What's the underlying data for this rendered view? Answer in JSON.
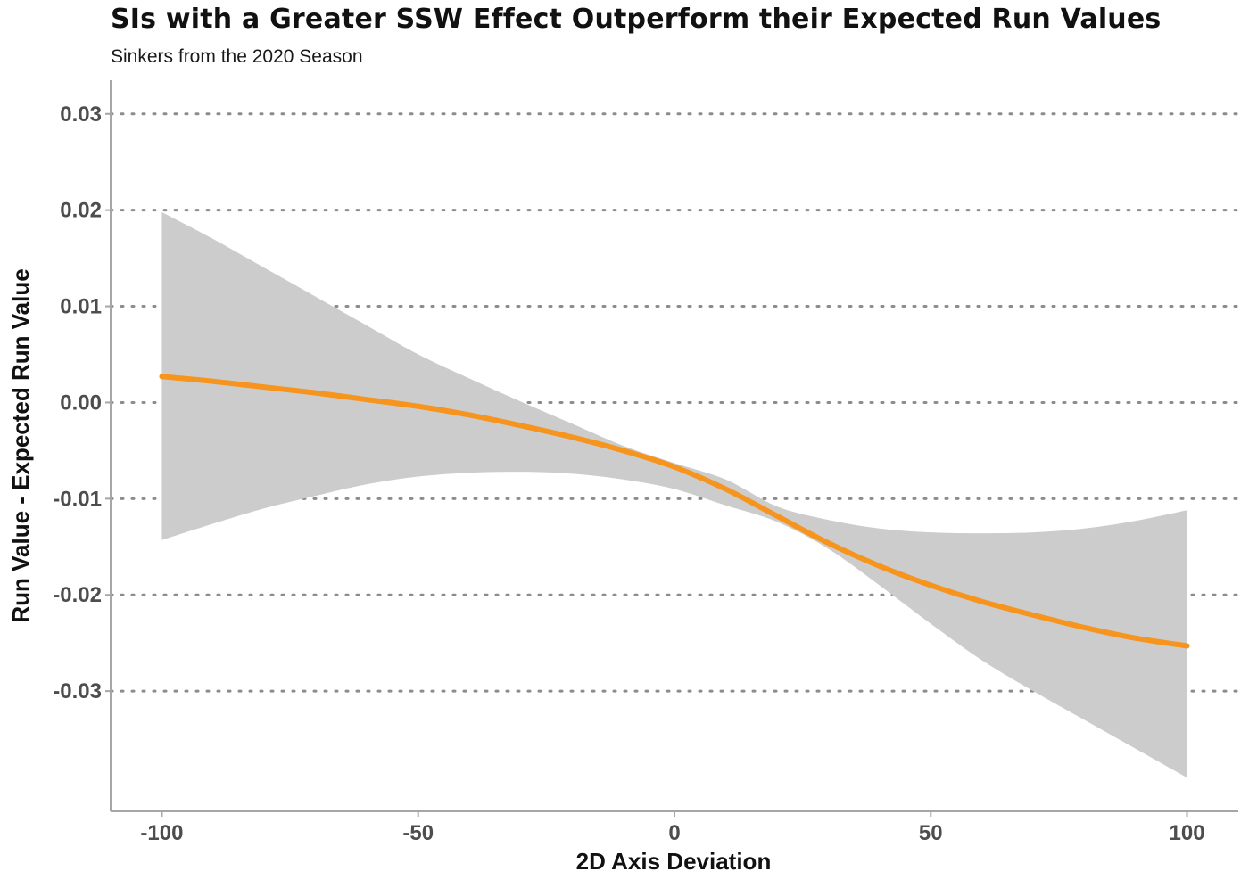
{
  "chart_data": {
    "type": "line",
    "title": "SIs with a Greater SSW Effect Outperform their Expected Run Values",
    "subtitle": "Sinkers from the 2020 Season",
    "xlabel": "2D Axis Deviation",
    "ylabel": "Run Value - Expected Run Value",
    "xlim": [
      -110,
      110
    ],
    "ylim": [
      -0.0425,
      0.0335
    ],
    "x_ticks": [
      -100,
      -50,
      0,
      50,
      100
    ],
    "x_tick_labels": [
      "-100",
      "-50",
      "0",
      "50",
      "100"
    ],
    "y_ticks": [
      0.03,
      0.02,
      0.01,
      0.0,
      -0.01,
      -0.02,
      -0.03
    ],
    "y_tick_labels": [
      "0.03",
      "0.02",
      "0.01",
      "0.00",
      "-0.01",
      "-0.02",
      "-0.03"
    ],
    "grid": {
      "horizontal": true,
      "vertical": false,
      "style": "dotted"
    },
    "line_color": "#f7941d",
    "band_color": "#cccccc",
    "series": [
      {
        "x": [
          -100,
          -90,
          -80,
          -70,
          -60,
          -50,
          -40,
          -30,
          -20,
          -10,
          0,
          10,
          20,
          30,
          40,
          50,
          60,
          70,
          80,
          90,
          100
        ],
        "values": [
          0.0027,
          0.0022,
          0.0016,
          0.001,
          0.0003,
          -0.0004,
          -0.0013,
          -0.0024,
          -0.0036,
          -0.005,
          -0.0067,
          -0.009,
          -0.0118,
          -0.0146,
          -0.017,
          -0.019,
          -0.0207,
          -0.0221,
          -0.0234,
          -0.0245,
          -0.0253
        ],
        "lower": [
          -0.0143,
          -0.0126,
          -0.011,
          -0.0097,
          -0.0085,
          -0.0077,
          -0.0073,
          -0.0072,
          -0.0074,
          -0.008,
          -0.009,
          -0.0107,
          -0.0124,
          -0.0152,
          -0.019,
          -0.023,
          -0.0268,
          -0.03,
          -0.033,
          -0.036,
          -0.039
        ],
        "upper": [
          0.0198,
          0.017,
          0.014,
          0.011,
          0.008,
          0.005,
          0.0025,
          0.0001,
          -0.0022,
          -0.0045,
          -0.0063,
          -0.008,
          -0.0108,
          -0.0122,
          -0.0131,
          -0.0135,
          -0.0136,
          -0.0135,
          -0.0131,
          -0.0123,
          -0.0112
        ]
      }
    ]
  }
}
